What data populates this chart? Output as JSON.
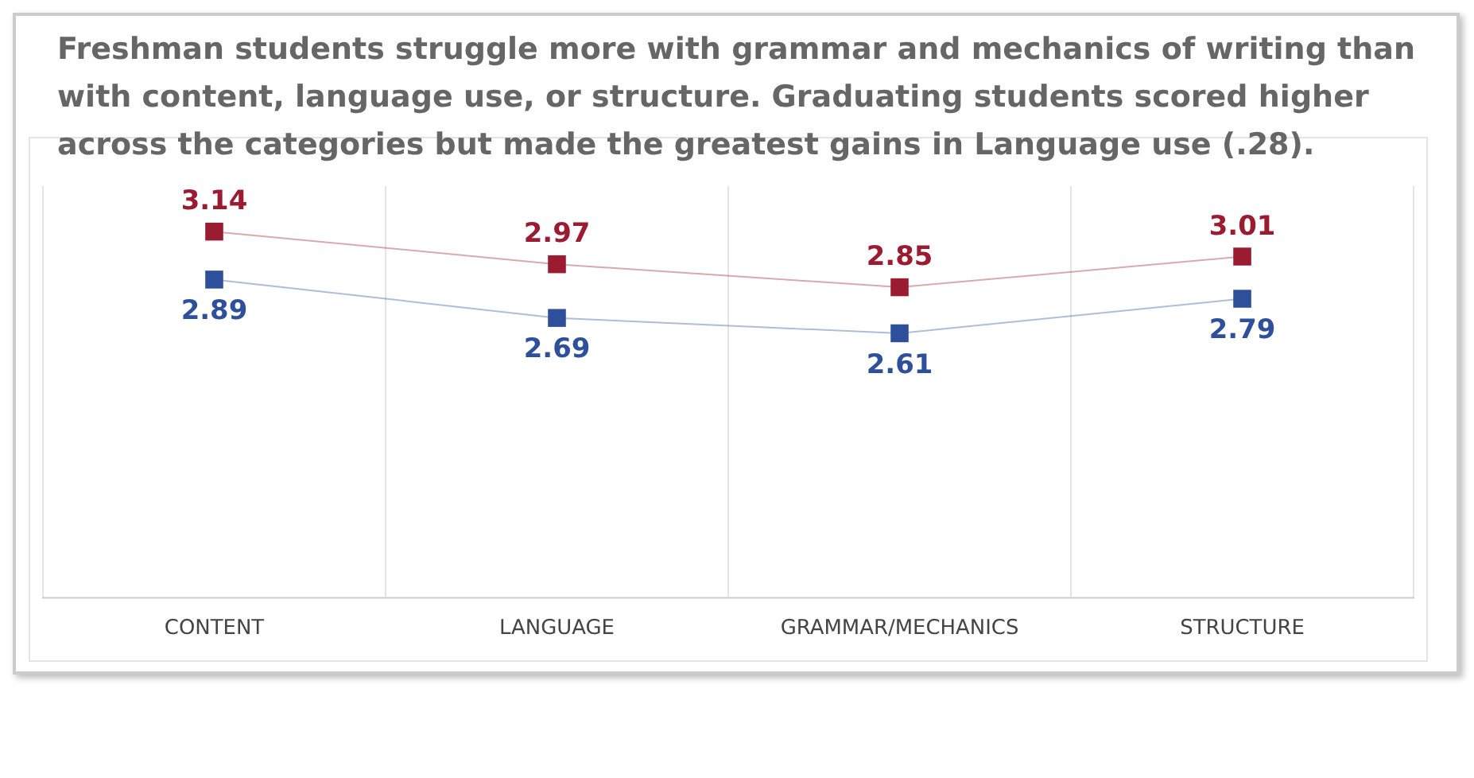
{
  "chart_data": {
    "type": "line",
    "title": "Freshman students struggle more with grammar and mechanics of writing than with content, language use, or structure. Graduating students scored higher across the categories but made the greatest gains in Language use (.28).",
    "categories": [
      "CONTENT",
      "LANGUAGE",
      "GRAMMAR/MECHANICS",
      "STRUCTURE"
    ],
    "series": [
      {
        "color": "#9b1b30",
        "values": [
          3.14,
          2.97,
          2.85,
          3.01
        ]
      },
      {
        "color": "#2e4f9a",
        "values": [
          2.89,
          2.69,
          2.61,
          2.79
        ]
      }
    ],
    "data_labels": true,
    "grid": "x",
    "legend": false,
    "marker": "square"
  }
}
